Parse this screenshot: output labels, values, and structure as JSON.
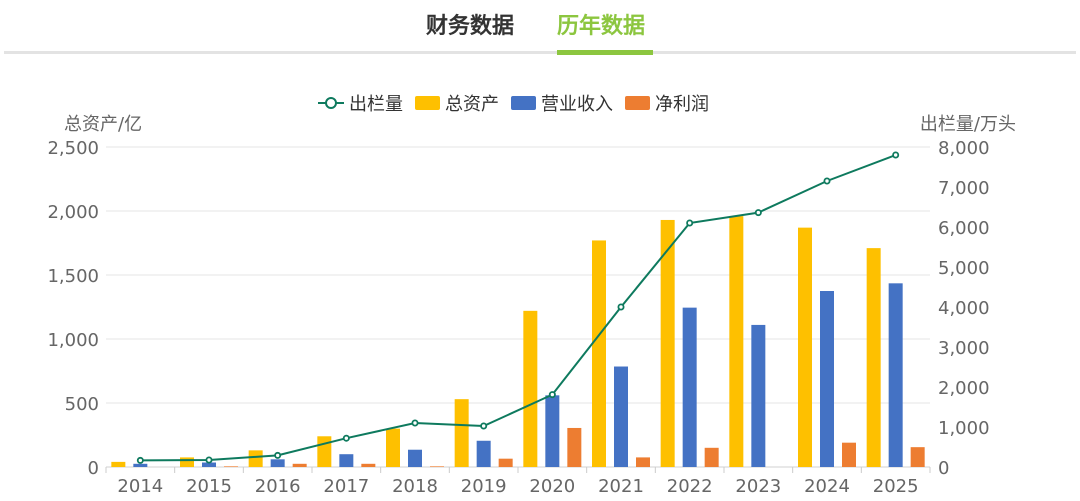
{
  "tabs": [
    {
      "label": "财务数据",
      "active": false
    },
    {
      "label": "历年数据",
      "active": true
    }
  ],
  "colors": {
    "tab_active": "#8cc63f",
    "tab_inactive": "#333333"
  },
  "chart_data": {
    "type": "bar",
    "categories": [
      "2014",
      "2015",
      "2016",
      "2017",
      "2018",
      "2019",
      "2020",
      "2021",
      "2022",
      "2023",
      "2024",
      "2025"
    ],
    "series": [
      {
        "name": "总资产",
        "type": "bar",
        "axis": "left",
        "color": "#fec000",
        "values": [
          40,
          75,
          130,
          240,
          300,
          530,
          1220,
          1770,
          1930,
          1960,
          1870,
          1710
        ]
      },
      {
        "name": "营业收入",
        "type": "bar",
        "axis": "left",
        "color": "#4472c4",
        "values": [
          25,
          35,
          60,
          100,
          135,
          205,
          560,
          785,
          1245,
          1110,
          1375,
          1435
        ]
      },
      {
        "name": "净利润",
        "type": "bar",
        "axis": "left",
        "color": "#ed7d31",
        "values": [
          0,
          5,
          25,
          25,
          5,
          65,
          305,
          75,
          150,
          0,
          190,
          155
        ]
      },
      {
        "name": "出栏量",
        "type": "line",
        "axis": "right",
        "color": "#0e7a5e",
        "values": [
          165,
          175,
          290,
          720,
          1100,
          1025,
          1810,
          4000,
          6100,
          6360,
          7150,
          7800
        ]
      }
    ],
    "legend": [
      "出栏量",
      "总资产",
      "营业收入",
      "净利润"
    ],
    "legend_position": "top-center",
    "y_left": {
      "label": "总资产/亿",
      "min": 0,
      "max": 2500,
      "ticks": [
        "0",
        "500",
        "1,000",
        "1,500",
        "2,000",
        "2,500"
      ]
    },
    "y_right": {
      "label": "出栏量/万头",
      "min": 0,
      "max": 8000,
      "ticks": [
        "0",
        "1,000",
        "2,000",
        "3,000",
        "4,000",
        "5,000",
        "6,000",
        "7,000",
        "8,000"
      ]
    },
    "grid": true
  }
}
